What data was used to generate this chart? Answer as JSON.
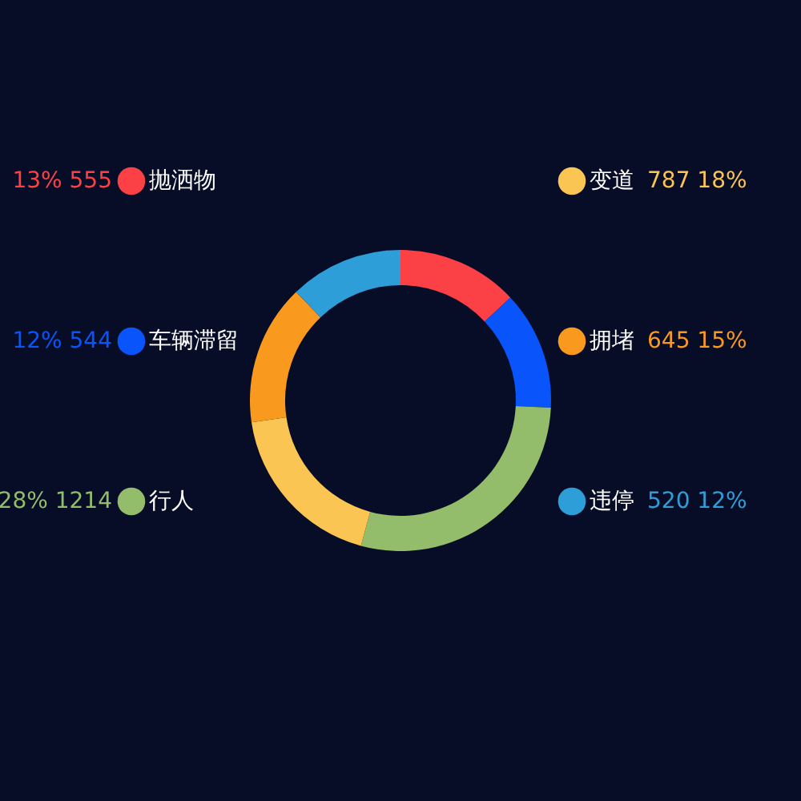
{
  "chart_data": {
    "type": "donut",
    "categories": [
      "抛洒物",
      "车辆滞留",
      "行人",
      "变道",
      "拥堵",
      "违停"
    ],
    "values": [
      555,
      544,
      1214,
      787,
      645,
      520
    ],
    "colors": [
      "#fb4146",
      "#0a55fb",
      "#93bd6b",
      "#fac552",
      "#f99a1f",
      "#2e9ed8"
    ],
    "legend": "top left",
    "value_labels": [
      "13%  555",
      "12%  544",
      "28%  1214",
      "787  18%",
      "645  15%",
      "520  12%"
    ]
  }
}
